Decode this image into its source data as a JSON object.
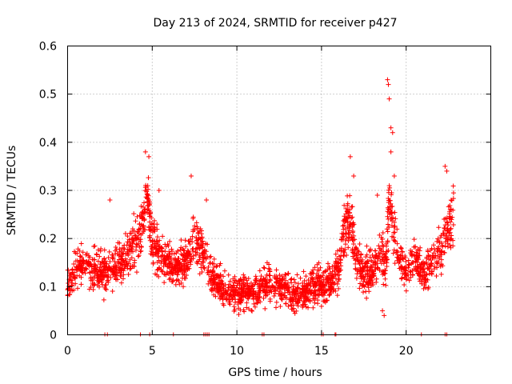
{
  "chart_data": {
    "type": "scatter",
    "title": "Day 213 of 2024, SRMTID for receiver p427",
    "xlabel": "GPS time / hours",
    "ylabel": "SRMTID / TECUs",
    "xlim": [
      0,
      25
    ],
    "ylim": [
      0,
      0.6
    ],
    "xticks": [
      0,
      5,
      10,
      15,
      20
    ],
    "xtick_labels": [
      "0",
      "5",
      "10",
      "15",
      "20"
    ],
    "yticks": [
      0,
      0.1,
      0.2,
      0.3,
      0.4,
      0.5,
      0.6
    ],
    "ytick_labels": [
      "0",
      "0.1",
      "0.2",
      "0.3",
      "0.4",
      "0.5",
      "0.6"
    ],
    "grid": true,
    "marker": "+",
    "color": "#ff0000",
    "trend": [
      [
        0.0,
        0.1
      ],
      [
        0.5,
        0.14
      ],
      [
        1.0,
        0.15
      ],
      [
        1.5,
        0.13
      ],
      [
        2.0,
        0.13
      ],
      [
        2.5,
        0.14
      ],
      [
        3.0,
        0.15
      ],
      [
        3.5,
        0.17
      ],
      [
        4.0,
        0.19
      ],
      [
        4.5,
        0.24
      ],
      [
        4.7,
        0.3
      ],
      [
        5.0,
        0.2
      ],
      [
        5.5,
        0.16
      ],
      [
        6.0,
        0.15
      ],
      [
        6.5,
        0.14
      ],
      [
        7.0,
        0.15
      ],
      [
        7.5,
        0.2
      ],
      [
        7.8,
        0.18
      ],
      [
        8.0,
        0.17
      ],
      [
        8.5,
        0.12
      ],
      [
        9.0,
        0.1
      ],
      [
        9.5,
        0.09
      ],
      [
        10.0,
        0.09
      ],
      [
        10.5,
        0.08
      ],
      [
        11.0,
        0.09
      ],
      [
        11.5,
        0.1
      ],
      [
        12.0,
        0.11
      ],
      [
        12.5,
        0.1
      ],
      [
        13.0,
        0.09
      ],
      [
        13.5,
        0.08
      ],
      [
        14.0,
        0.09
      ],
      [
        14.5,
        0.1
      ],
      [
        15.0,
        0.1
      ],
      [
        15.5,
        0.11
      ],
      [
        16.0,
        0.14
      ],
      [
        16.3,
        0.2
      ],
      [
        16.7,
        0.25
      ],
      [
        17.0,
        0.17
      ],
      [
        17.5,
        0.12
      ],
      [
        18.0,
        0.13
      ],
      [
        18.5,
        0.17
      ],
      [
        18.8,
        0.14
      ],
      [
        19.0,
        0.28
      ],
      [
        19.3,
        0.2
      ],
      [
        19.6,
        0.16
      ],
      [
        20.0,
        0.12
      ],
      [
        20.5,
        0.16
      ],
      [
        21.0,
        0.13
      ],
      [
        21.5,
        0.15
      ],
      [
        22.0,
        0.18
      ],
      [
        22.5,
        0.22
      ],
      [
        22.8,
        0.25
      ]
    ],
    "spikes": [
      [
        2.5,
        0.28
      ],
      [
        4.6,
        0.38
      ],
      [
        4.8,
        0.37
      ],
      [
        5.4,
        0.3
      ],
      [
        7.3,
        0.33
      ],
      [
        8.2,
        0.28
      ],
      [
        16.7,
        0.37
      ],
      [
        16.9,
        0.33
      ],
      [
        18.3,
        0.29
      ],
      [
        18.9,
        0.53
      ],
      [
        18.95,
        0.52
      ],
      [
        19.0,
        0.49
      ],
      [
        19.1,
        0.43
      ],
      [
        19.2,
        0.42
      ],
      [
        19.1,
        0.38
      ],
      [
        19.3,
        0.33
      ],
      [
        22.3,
        0.35
      ],
      [
        22.4,
        0.34
      ],
      [
        18.7,
        0.04
      ],
      [
        18.6,
        0.05
      ]
    ],
    "rug_x": [
      2.2,
      2.35,
      4.3,
      4.85,
      6.25,
      8.05,
      8.15,
      8.25,
      8.35,
      11.5,
      11.6,
      15.0,
      15.1,
      15.8,
      15.85,
      20.9,
      22.3,
      22.4
    ],
    "n_points": 2400
  }
}
